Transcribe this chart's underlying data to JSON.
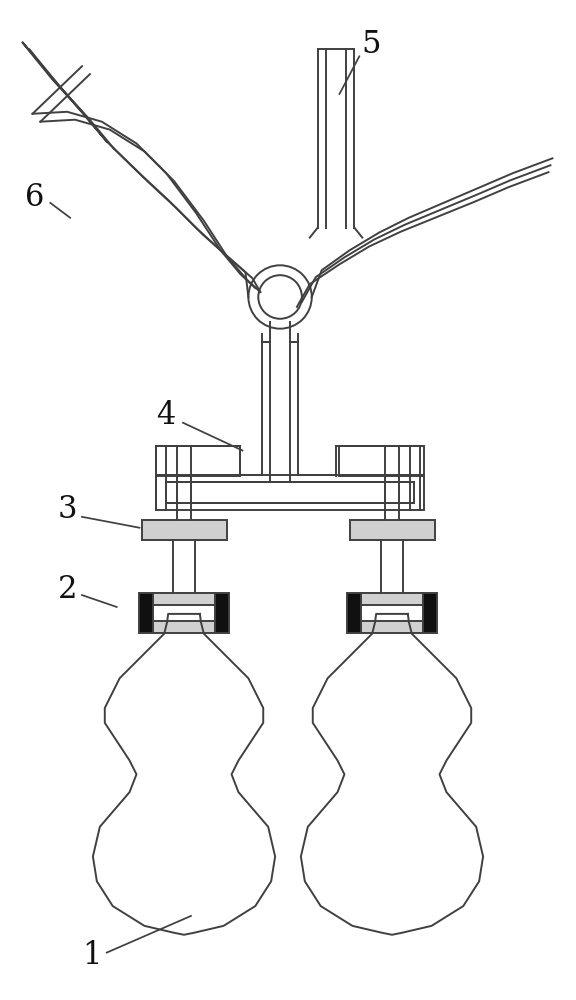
{
  "bg_color": "#ffffff",
  "line_color": "#404040",
  "dark_color": "#101010",
  "light_gray": "#d0d0d0",
  "fig_width": 5.76,
  "fig_height": 10.0,
  "label_fontsize": 22,
  "lw": 1.4
}
